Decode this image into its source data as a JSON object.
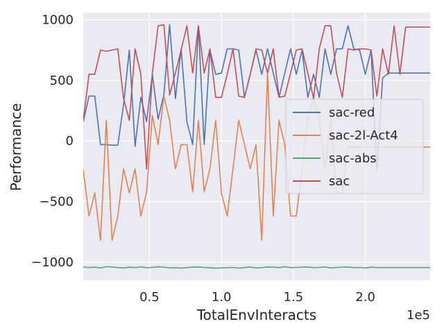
{
  "chart_data": {
    "type": "line",
    "xlabel": "TotalEnvInteracts",
    "ylabel": "Performance",
    "x_offset_label": "1e5",
    "xlim": [
      0.04,
      2.45
    ],
    "ylim": [
      -1150,
      1060
    ],
    "x_ticks": [
      0.5,
      1.0,
      1.5,
      2.0
    ],
    "x_tick_labels": [
      "0.5",
      "1.0",
      "1.5",
      "2.0"
    ],
    "y_ticks": [
      -1000,
      -500,
      0,
      500,
      1000
    ],
    "y_tick_labels": [
      "−1000",
      "−500",
      "0",
      "500",
      "1000"
    ],
    "grid": true,
    "legend_position": "center-right",
    "x": [
      0.04,
      0.08,
      0.12,
      0.16,
      0.2,
      0.24,
      0.28,
      0.32,
      0.36,
      0.4,
      0.44,
      0.48,
      0.52,
      0.56,
      0.6,
      0.64,
      0.68,
      0.72,
      0.76,
      0.8,
      0.84,
      0.88,
      0.92,
      0.96,
      1.0,
      1.04,
      1.08,
      1.12,
      1.16,
      1.2,
      1.24,
      1.28,
      1.32,
      1.36,
      1.4,
      1.44,
      1.48,
      1.52,
      1.56,
      1.6,
      1.64,
      1.68,
      1.72,
      1.76,
      1.8,
      1.84,
      1.88,
      1.92,
      1.96,
      2.0,
      2.04,
      2.08,
      2.12,
      2.16,
      2.2,
      2.24,
      2.28,
      2.32,
      2.36,
      2.4,
      2.45
    ],
    "series": [
      {
        "name": "sac-red",
        "color": "#4c72b0",
        "values": [
          160,
          370,
          370,
          -30,
          -30,
          -35,
          -35,
          300,
          750,
          -45,
          360,
          160,
          550,
          180,
          380,
          960,
          350,
          760,
          160,
          -30,
          950,
          -30,
          750,
          550,
          560,
          760,
          760,
          750,
          360,
          550,
          750,
          550,
          760,
          560,
          360,
          560,
          760,
          550,
          750,
          360,
          550,
          360,
          760,
          550,
          760,
          760,
          950,
          760,
          750,
          550,
          750,
          -240,
          520,
          560,
          560,
          560,
          560,
          560,
          560,
          560,
          560
        ]
      },
      {
        "name": "sac-2l-Act4",
        "color": "#dd8452",
        "values": [
          -240,
          -620,
          -430,
          -820,
          170,
          -820,
          -620,
          -230,
          -430,
          -230,
          -620,
          -420,
          210,
          -30,
          370,
          170,
          -230,
          -30,
          -30,
          -420,
          170,
          -420,
          -230,
          170,
          -430,
          -620,
          -230,
          170,
          -30,
          -230,
          -30,
          -820,
          560,
          -620,
          170,
          -30,
          -620,
          -620,
          -230,
          170,
          360,
          170,
          -230,
          170,
          -420,
          -430,
          -50,
          -50,
          -50,
          -50,
          -50,
          -50,
          -50,
          -50,
          -50,
          -50,
          -50,
          -50,
          -50,
          -50,
          -50
        ]
      },
      {
        "name": "sac-abs",
        "color": "#55a868",
        "values": [
          -1040,
          -1045,
          -1042,
          -1048,
          -1038,
          -1040,
          -1045,
          -1048,
          -1042,
          -1045,
          -1040,
          -1046,
          -1044,
          -1038,
          -1042,
          -1048,
          -1046,
          -1050,
          -1045,
          -1042,
          -1040,
          -1044,
          -1046,
          -1050,
          -1048,
          -1046,
          -1044,
          -1050,
          -1045,
          -1040,
          -1048,
          -1046,
          -1040,
          -1042,
          -1045,
          -1038,
          -1046,
          -1044,
          -1042,
          -1040,
          -1046,
          -1044,
          -1040,
          -1048,
          -1044,
          -1042,
          -1040,
          -1046,
          -1044,
          -1048,
          -1042,
          -1045,
          -1045,
          -1045,
          -1045,
          -1045,
          -1045,
          -1045,
          -1045,
          -1045,
          -1045
        ]
      },
      {
        "name": "sac",
        "color": "#c44e52",
        "values": [
          170,
          550,
          550,
          750,
          740,
          750,
          760,
          350,
          170,
          760,
          550,
          -230,
          560,
          950,
          960,
          380,
          560,
          750,
          950,
          560,
          950,
          560,
          760,
          360,
          360,
          550,
          760,
          370,
          360,
          550,
          760,
          750,
          560,
          760,
          360,
          370,
          560,
          750,
          760,
          560,
          350,
          760,
          950,
          950,
          560,
          360,
          760,
          750,
          760,
          760,
          750,
          370,
          760,
          550,
          950,
          550,
          940,
          940,
          940,
          940,
          940
        ]
      }
    ]
  }
}
